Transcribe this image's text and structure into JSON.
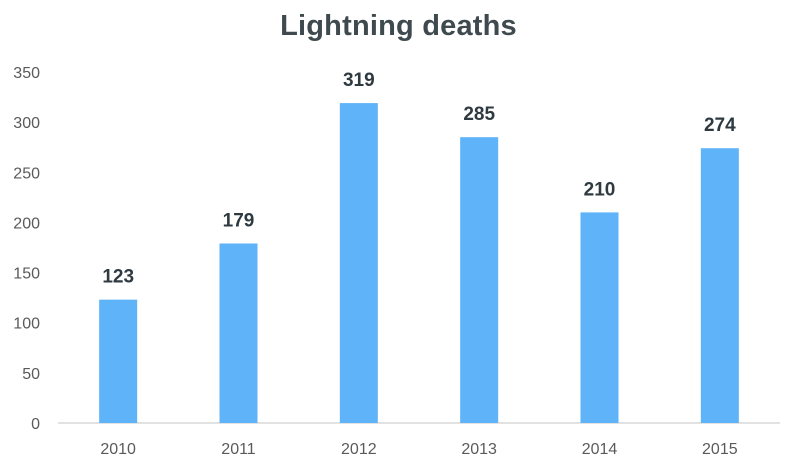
{
  "chart_data": {
    "type": "bar",
    "title": "Lightning deaths",
    "xlabel": "",
    "ylabel": "",
    "categories": [
      "2010",
      "2011",
      "2012",
      "2013",
      "2014",
      "2015"
    ],
    "values": [
      123,
      179,
      319,
      285,
      210,
      274
    ],
    "data_labels": [
      "123",
      "179",
      "319",
      "285",
      "210",
      "274"
    ],
    "ylim": [
      0,
      350
    ],
    "yticks": [
      0,
      50,
      100,
      150,
      200,
      250,
      300,
      350
    ],
    "ytick_labels": [
      "0",
      "50",
      "100",
      "150",
      "200",
      "250",
      "300",
      "350"
    ],
    "grid": false,
    "legend": "none",
    "colors": {
      "bar": "#5fb3f8",
      "title": "#3f4a4f",
      "data_label": "#2f3a40",
      "tick_label": "#5a5a5a",
      "axis": "#d0d0d0"
    }
  }
}
